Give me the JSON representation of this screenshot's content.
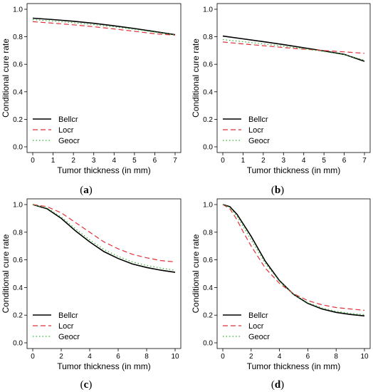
{
  "colors": {
    "Bellcr": "#000000",
    "Locr": "#e0303a",
    "Geocr": "#2db52d"
  },
  "chart_data": [
    {
      "type": "line",
      "caption_letter": "a",
      "xlabel": "Tumor thickness (in mm)",
      "ylabel": "Conditional cure rate",
      "xlim": [
        0,
        7
      ],
      "ylim": [
        0,
        1
      ],
      "xticks": [
        "0",
        "1",
        "2",
        "3",
        "4",
        "5",
        "6",
        "7"
      ],
      "yticks": [
        "0.0",
        "0.2",
        "0.4",
        "0.6",
        "0.8",
        "1.0"
      ],
      "legend_position": "bottom-left",
      "series": [
        {
          "name": "Bellcr",
          "style": "solid",
          "x": [
            0,
            1,
            2,
            3,
            4,
            5,
            6,
            7
          ],
          "y": [
            0.935,
            0.925,
            0.913,
            0.898,
            0.88,
            0.86,
            0.838,
            0.815
          ]
        },
        {
          "name": "Locr",
          "style": "dashed",
          "x": [
            0,
            1,
            2,
            3,
            4,
            5,
            6,
            7
          ],
          "y": [
            0.91,
            0.899,
            0.887,
            0.873,
            0.857,
            0.84,
            0.822,
            0.812
          ]
        },
        {
          "name": "Geocr",
          "style": "dotted",
          "x": [
            0,
            1,
            2,
            3,
            4,
            5,
            6,
            7
          ],
          "y": [
            0.925,
            0.914,
            0.902,
            0.888,
            0.872,
            0.854,
            0.834,
            0.813
          ]
        }
      ]
    },
    {
      "type": "line",
      "caption_letter": "b",
      "xlabel": "Tumor thickness (in mm)",
      "ylabel": "Conditional cure rate",
      "xlim": [
        0,
        7
      ],
      "ylim": [
        0,
        1
      ],
      "xticks": [
        "0",
        "1",
        "2",
        "3",
        "4",
        "5",
        "6",
        "7"
      ],
      "yticks": [
        "0.0",
        "0.2",
        "0.4",
        "0.6",
        "0.8",
        "1.0"
      ],
      "legend_position": "bottom-left",
      "series": [
        {
          "name": "Bellcr",
          "style": "solid",
          "x": [
            0,
            1,
            2,
            3,
            4,
            5,
            6,
            7
          ],
          "y": [
            0.805,
            0.785,
            0.765,
            0.743,
            0.72,
            0.697,
            0.672,
            0.622
          ]
        },
        {
          "name": "Locr",
          "style": "dashed",
          "x": [
            0,
            1,
            2,
            3,
            4,
            5,
            6,
            7
          ],
          "y": [
            0.762,
            0.748,
            0.735,
            0.722,
            0.71,
            0.7,
            0.69,
            0.68
          ]
        },
        {
          "name": "Geocr",
          "style": "dotted",
          "x": [
            0,
            1,
            2,
            3,
            4,
            5,
            6,
            7
          ],
          "y": [
            0.78,
            0.764,
            0.748,
            0.731,
            0.713,
            0.693,
            0.67,
            0.63
          ]
        }
      ]
    },
    {
      "type": "line",
      "caption_letter": "c",
      "xlabel": "Tumor thickness (in mm)",
      "ylabel": "Conditional cure rate",
      "xlim": [
        0,
        10
      ],
      "ylim": [
        0,
        1
      ],
      "xticks": [
        "0",
        "2",
        "4",
        "6",
        "8",
        "10"
      ],
      "yticks": [
        "0.0",
        "0.2",
        "0.4",
        "0.6",
        "0.8",
        "1.0"
      ],
      "legend_position": "bottom-left",
      "series": [
        {
          "name": "Bellcr",
          "style": "solid",
          "x": [
            0,
            1,
            2,
            3,
            4,
            5,
            6,
            7,
            8,
            9,
            10
          ],
          "y": [
            1.0,
            0.97,
            0.9,
            0.81,
            0.73,
            0.66,
            0.61,
            0.57,
            0.545,
            0.525,
            0.51
          ]
        },
        {
          "name": "Locr",
          "style": "dashed",
          "x": [
            0,
            1,
            2,
            3,
            4,
            5,
            6,
            7,
            8,
            9,
            10
          ],
          "y": [
            1.0,
            0.985,
            0.94,
            0.87,
            0.8,
            0.73,
            0.68,
            0.64,
            0.615,
            0.595,
            0.585
          ]
        },
        {
          "name": "Geocr",
          "style": "dotted",
          "x": [
            0,
            1,
            2,
            3,
            4,
            5,
            6,
            7,
            8,
            9,
            10
          ],
          "y": [
            1.0,
            0.975,
            0.91,
            0.825,
            0.745,
            0.675,
            0.625,
            0.585,
            0.56,
            0.54,
            0.525
          ]
        }
      ]
    },
    {
      "type": "line",
      "caption_letter": "d",
      "xlabel": "Tumor thickness (in mm)",
      "ylabel": "Conditional cure rate",
      "xlim": [
        0,
        10
      ],
      "ylim": [
        0,
        1
      ],
      "xticks": [
        "0",
        "2",
        "4",
        "6",
        "8",
        "10"
      ],
      "yticks": [
        "0.0",
        "0.2",
        "0.4",
        "0.6",
        "0.8",
        "1.0"
      ],
      "legend_position": "bottom-left",
      "series": [
        {
          "name": "Bellcr",
          "style": "solid",
          "x": [
            0,
            0.5,
            1,
            1.5,
            2,
            3,
            4,
            5,
            6,
            7,
            8,
            9,
            10
          ],
          "y": [
            1.0,
            0.985,
            0.93,
            0.85,
            0.77,
            0.59,
            0.45,
            0.35,
            0.285,
            0.245,
            0.22,
            0.205,
            0.195
          ]
        },
        {
          "name": "Locr",
          "style": "dashed",
          "x": [
            0,
            0.5,
            1,
            1.5,
            2,
            3,
            4,
            5,
            6,
            7,
            8,
            9,
            10
          ],
          "y": [
            1.0,
            0.97,
            0.89,
            0.79,
            0.7,
            0.54,
            0.43,
            0.355,
            0.305,
            0.275,
            0.255,
            0.245,
            0.235
          ]
        },
        {
          "name": "Geocr",
          "style": "dotted",
          "x": [
            0,
            0.5,
            1,
            1.5,
            2,
            3,
            4,
            5,
            6,
            7,
            8,
            9,
            10
          ],
          "y": [
            1.0,
            0.98,
            0.915,
            0.83,
            0.745,
            0.575,
            0.445,
            0.35,
            0.29,
            0.252,
            0.228,
            0.213,
            0.203
          ]
        }
      ]
    }
  ]
}
